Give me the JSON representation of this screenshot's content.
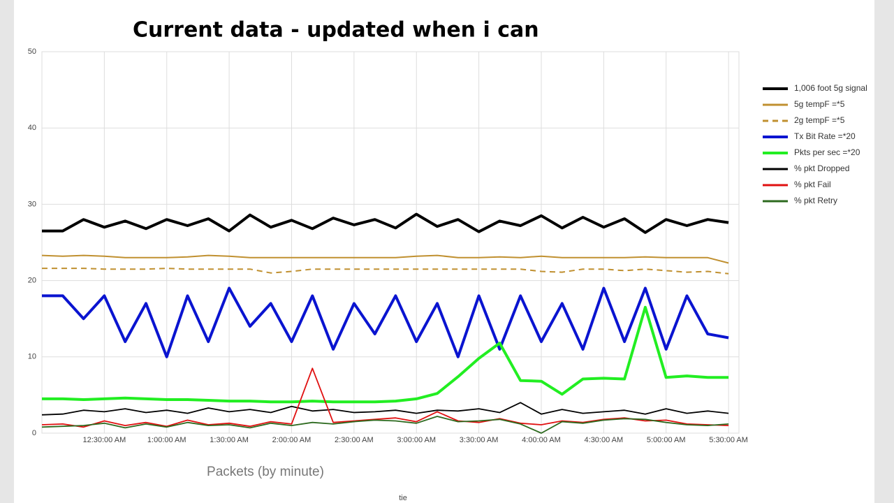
{
  "chart_data": {
    "type": "line",
    "title": "Current data - updated when i can",
    "x_label": "Packets  (by minute)",
    "footer": "tie",
    "x": [
      "12:00:00 AM",
      "12:10:00 AM",
      "12:20:00 AM",
      "12:30:00 AM",
      "12:40:00 AM",
      "12:50:00 AM",
      "1:00:00 AM",
      "1:10:00 AM",
      "1:20:00 AM",
      "1:30:00 AM",
      "1:40:00 AM",
      "1:50:00 AM",
      "2:00:00 AM",
      "2:10:00 AM",
      "2:20:00 AM",
      "2:30:00 AM",
      "2:40:00 AM",
      "2:50:00 AM",
      "3:00:00 AM",
      "3:10:00 AM",
      "3:20:00 AM",
      "3:30:00 AM",
      "3:40:00 AM",
      "3:50:00 AM",
      "4:00:00 AM",
      "4:10:00 AM",
      "4:20:00 AM",
      "4:30:00 AM",
      "4:40:00 AM",
      "4:50:00 AM",
      "5:00:00 AM",
      "5:10:00 AM",
      "5:20:00 AM",
      "5:30:00 AM"
    ],
    "xlim": [
      "12:00:00 AM",
      "5:35:00 AM"
    ],
    "xticks": [
      "12:30:00 AM",
      "1:00:00 AM",
      "1:30:00 AM",
      "2:00:00 AM",
      "2:30:00 AM",
      "3:00:00 AM",
      "3:30:00 AM",
      "4:00:00 AM",
      "4:30:00 AM",
      "5:00:00 AM",
      "5:30:00 AM"
    ],
    "ylim": [
      0,
      50
    ],
    "yticks": [
      0,
      10,
      20,
      30,
      40,
      50
    ],
    "grid": true,
    "series": [
      {
        "name": "1,006 foot 5g signal",
        "color": "#000000",
        "width": 4,
        "dashed": false,
        "values": [
          26.5,
          26.5,
          28,
          27,
          27.8,
          26.8,
          28,
          27.2,
          28.1,
          26.5,
          28.6,
          27,
          27.9,
          26.8,
          28.2,
          27.3,
          28,
          26.9,
          28.7,
          27.1,
          28,
          26.4,
          27.8,
          27.2,
          28.5,
          26.9,
          28.3,
          27,
          28.1,
          26.3,
          28,
          27.2,
          28,
          27.6
        ]
      },
      {
        "name": "5g tempF =*5",
        "color": "#c09030",
        "width": 2,
        "dashed": false,
        "values": [
          23.3,
          23.2,
          23.3,
          23.2,
          23,
          23,
          23,
          23.1,
          23.3,
          23.2,
          23,
          23,
          23,
          23,
          23,
          23,
          23,
          23,
          23.2,
          23.3,
          23,
          23,
          23.1,
          23,
          23.2,
          23,
          23,
          23,
          23,
          23.1,
          23,
          23,
          23,
          22.3
        ]
      },
      {
        "name": "2g tempF =*5",
        "color": "#c09030",
        "width": 2,
        "dashed": true,
        "values": [
          21.6,
          21.6,
          21.6,
          21.5,
          21.5,
          21.5,
          21.6,
          21.5,
          21.5,
          21.5,
          21.5,
          21,
          21.2,
          21.5,
          21.5,
          21.5,
          21.5,
          21.5,
          21.5,
          21.5,
          21.5,
          21.5,
          21.5,
          21.5,
          21.2,
          21.1,
          21.5,
          21.5,
          21.3,
          21.5,
          21.3,
          21.1,
          21.2,
          20.9
        ]
      },
      {
        "name": "Tx Bit Rate =*20",
        "color": "#0a14d0",
        "width": 4,
        "dashed": false,
        "values": [
          18,
          18,
          15,
          18,
          12,
          17,
          10,
          18,
          12,
          19,
          14,
          17,
          12,
          18,
          11,
          17,
          13,
          18,
          12,
          17,
          10,
          18,
          11,
          18,
          12,
          17,
          11,
          19,
          12,
          19,
          11,
          18,
          13,
          12.5
        ]
      },
      {
        "name": "Pkts per sec =*20",
        "color": "#22ee22",
        "width": 4,
        "dashed": false,
        "values": [
          4.5,
          4.5,
          4.4,
          4.5,
          4.6,
          4.5,
          4.4,
          4.4,
          4.3,
          4.2,
          4.2,
          4.1,
          4.1,
          4.2,
          4.1,
          4.1,
          4.1,
          4.2,
          4.5,
          5.2,
          7.4,
          9.8,
          11.8,
          6.9,
          6.8,
          5.1,
          7.1,
          7.2,
          7.1,
          16.5,
          7.3,
          7.5,
          7.3,
          7.3
        ]
      },
      {
        "name": "% pkt Dropped",
        "color": "#000000",
        "width": 1.8,
        "dashed": false,
        "values": [
          2.4,
          2.5,
          3,
          2.8,
          3.2,
          2.7,
          3,
          2.6,
          3.3,
          2.8,
          3.1,
          2.7,
          3.5,
          2.9,
          3.1,
          2.7,
          2.8,
          3,
          2.6,
          3,
          2.9,
          3.2,
          2.7,
          4,
          2.5,
          3.1,
          2.6,
          2.8,
          3,
          2.5,
          3.2,
          2.6,
          2.9,
          2.6
        ]
      },
      {
        "name": "% pkt Fail",
        "color": "#e01010",
        "width": 1.8,
        "dashed": false,
        "values": [
          1.1,
          1.2,
          0.8,
          1.6,
          1,
          1.4,
          0.9,
          1.7,
          1.1,
          1.3,
          0.9,
          1.5,
          1.2,
          8.5,
          1.4,
          1.6,
          1.8,
          2,
          1.5,
          2.8,
          1.6,
          1.4,
          1.9,
          1.3,
          1.1,
          1.6,
          1.4,
          1.8,
          2,
          1.6,
          1.7,
          1.2,
          1.1,
          1.0
        ]
      },
      {
        "name": "% pkt Retry",
        "color": "#2d6a1f",
        "width": 1.8,
        "dashed": false,
        "values": [
          0.8,
          0.9,
          1,
          1.3,
          0.7,
          1.2,
          0.8,
          1.4,
          1,
          1.1,
          0.7,
          1.3,
          1,
          1.4,
          1.2,
          1.5,
          1.7,
          1.6,
          1.3,
          2.2,
          1.5,
          1.6,
          1.8,
          1.2,
          0,
          1.5,
          1.3,
          1.7,
          1.9,
          1.8,
          1.4,
          1.1,
          1,
          1.2
        ]
      }
    ]
  }
}
